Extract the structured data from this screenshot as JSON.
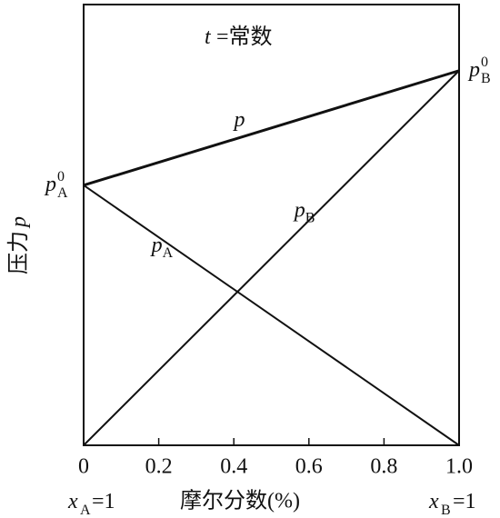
{
  "chart_data": {
    "type": "line",
    "annotation": {
      "symbol": "t",
      "rest": "=常数"
    },
    "x": [
      0,
      1
    ],
    "xlim": [
      0,
      1
    ],
    "ylim": [
      0,
      100
    ],
    "xticks": [
      0,
      0.2,
      0.4,
      0.6,
      0.8,
      {
        "value": 1,
        "label": "1.0"
      }
    ],
    "xlabel": "摩尔分数(%)",
    "ylabel": {
      "text": "压力",
      "symbol": "p"
    },
    "x_left_label": {
      "symbol": "x",
      "subscript": "A",
      "rest": "=1"
    },
    "x_right_label": {
      "symbol": "x",
      "subscript": "B",
      "rest": "=1"
    },
    "end_labels": [
      {
        "symbol": "p",
        "subscript": "A",
        "superscript": "0"
      },
      {
        "symbol": "p",
        "subscript": "B",
        "superscript": "0"
      }
    ],
    "series": [
      {
        "name": "p",
        "color": "#111111",
        "values": [
          59,
          85
        ]
      },
      {
        "name": "p",
        "subscript": "A",
        "color": "#111111",
        "values": [
          59,
          0
        ]
      },
      {
        "name": "p",
        "subscript": "B",
        "color": "#111111",
        "values": [
          0,
          85
        ]
      }
    ]
  }
}
